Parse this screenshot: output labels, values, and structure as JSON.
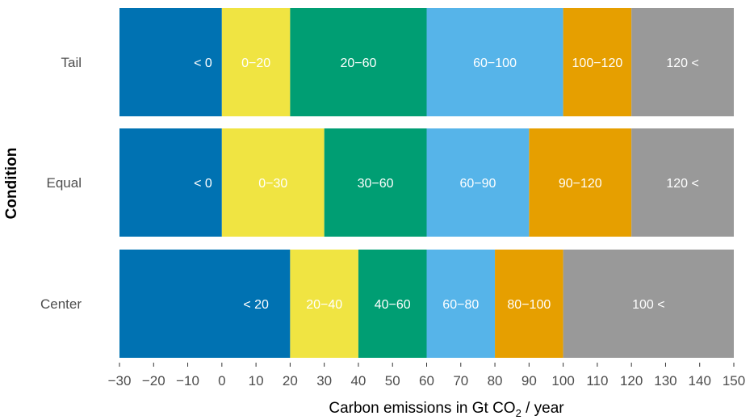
{
  "chart_data": {
    "type": "bar",
    "orientation": "horizontal-stacked",
    "xlabel": "Carbon emissions in Gt CO2 / year",
    "xlabel_parts": {
      "main": "Carbon emissions in Gt CO",
      "subscript": "2",
      "suffix": " / year"
    },
    "ylabel": "Condition",
    "xlim": [
      -30,
      150
    ],
    "xticks": [
      -30,
      -20,
      -10,
      0,
      10,
      20,
      30,
      40,
      50,
      60,
      70,
      80,
      90,
      100,
      110,
      120,
      130,
      140,
      150
    ],
    "xtick_labels": [
      "−30",
      "−20",
      "−10",
      "0",
      "10",
      "20",
      "30",
      "40",
      "50",
      "60",
      "70",
      "80",
      "90",
      "100",
      "110",
      "120",
      "130",
      "140",
      "150"
    ],
    "grid": false,
    "categories": [
      "Tail",
      "Equal",
      "Center"
    ],
    "rows": [
      {
        "name": "Tail",
        "segments": [
          {
            "label": "< 0",
            "start": -30,
            "end": 0,
            "color": "#0072B2"
          },
          {
            "label": "0−20",
            "start": 0,
            "end": 20,
            "color": "#F0E442"
          },
          {
            "label": "20−60",
            "start": 20,
            "end": 60,
            "color": "#009E73"
          },
          {
            "label": "60−100",
            "start": 60,
            "end": 100,
            "color": "#56B4E9"
          },
          {
            "label": "100−120",
            "start": 100,
            "end": 120,
            "color": "#E69F00"
          },
          {
            "label": "120 <",
            "start": 120,
            "end": 150,
            "color": "#999999"
          }
        ]
      },
      {
        "name": "Equal",
        "segments": [
          {
            "label": "< 0",
            "start": -30,
            "end": 0,
            "color": "#0072B2"
          },
          {
            "label": "0−30",
            "start": 0,
            "end": 30,
            "color": "#F0E442"
          },
          {
            "label": "30−60",
            "start": 30,
            "end": 60,
            "color": "#009E73"
          },
          {
            "label": "60−90",
            "start": 60,
            "end": 90,
            "color": "#56B4E9"
          },
          {
            "label": "90−120",
            "start": 90,
            "end": 120,
            "color": "#E69F00"
          },
          {
            "label": "120 <",
            "start": 120,
            "end": 150,
            "color": "#999999"
          }
        ]
      },
      {
        "name": "Center",
        "segments": [
          {
            "label": "< 20",
            "start": -30,
            "end": 20,
            "color": "#0072B2"
          },
          {
            "label": "20−40",
            "start": 20,
            "end": 40,
            "color": "#F0E442"
          },
          {
            "label": "40−60",
            "start": 40,
            "end": 60,
            "color": "#009E73"
          },
          {
            "label": "60−80",
            "start": 60,
            "end": 80,
            "color": "#56B4E9"
          },
          {
            "label": "80−100",
            "start": 80,
            "end": 100,
            "color": "#E69F00"
          },
          {
            "label": "100 <",
            "start": 100,
            "end": 150,
            "color": "#999999"
          }
        ]
      }
    ]
  }
}
